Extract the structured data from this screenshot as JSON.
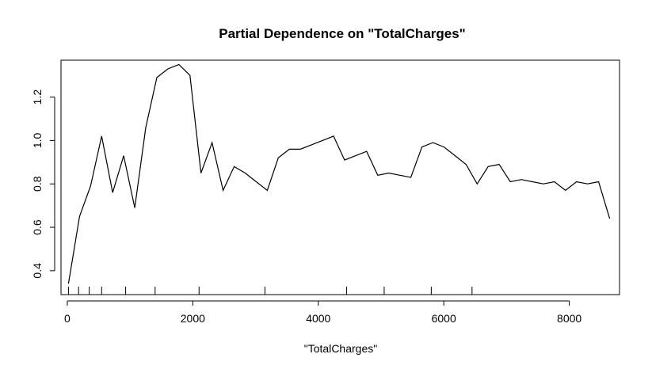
{
  "chart_data": {
    "type": "line",
    "title": "Partial Dependence on \"TotalCharges\"",
    "xlabel": "\"TotalCharges\"",
    "ylabel": "",
    "xlim": [
      -100,
      8800
    ],
    "ylim": [
      0.29,
      1.37
    ],
    "x_ticks": [
      0,
      2000,
      4000,
      6000,
      8000
    ],
    "y_ticks": [
      0.4,
      0.6,
      0.8,
      1.0,
      1.2
    ],
    "x_tick_labels": [
      "0",
      "2000",
      "4000",
      "6000",
      "8000"
    ],
    "y_tick_labels": [
      "0.4",
      "0.6",
      "0.8",
      "1.0",
      "1.2"
    ],
    "grid": false,
    "series": [
      {
        "x": [
          19,
          195,
          371,
          547,
          723,
          899,
          1075,
          1251,
          1427,
          1603,
          1779,
          1955,
          2131,
          2307,
          2483,
          2659,
          2835,
          3011,
          3187,
          3363,
          3539,
          3715,
          3891,
          4067,
          4243,
          4419,
          4595,
          4771,
          4947,
          5123,
          5299,
          5475,
          5651,
          5827,
          6003,
          6179,
          6355,
          6531,
          6707,
          6883,
          7059,
          7235,
          7411,
          7587,
          7763,
          7939,
          8115,
          8291,
          8467,
          8643
        ],
        "y": [
          0.34,
          0.65,
          0.79,
          1.02,
          0.76,
          0.93,
          0.69,
          1.06,
          1.29,
          1.33,
          1.35,
          1.3,
          0.85,
          0.99,
          0.77,
          0.88,
          0.85,
          0.81,
          0.77,
          0.92,
          0.96,
          0.96,
          0.98,
          1.0,
          1.02,
          0.91,
          0.93,
          0.95,
          0.84,
          0.85,
          0.84,
          0.83,
          0.97,
          0.99,
          0.97,
          0.93,
          0.89,
          0.8,
          0.88,
          0.89,
          0.81,
          0.82,
          0.81,
          0.8,
          0.81,
          0.77,
          0.81,
          0.8,
          0.81,
          0.64
        ]
      }
    ],
    "rug_x": [
      19,
      180,
      350,
      547,
      930,
      1400,
      2100,
      3150,
      4450,
      5050,
      5800,
      6450
    ]
  }
}
